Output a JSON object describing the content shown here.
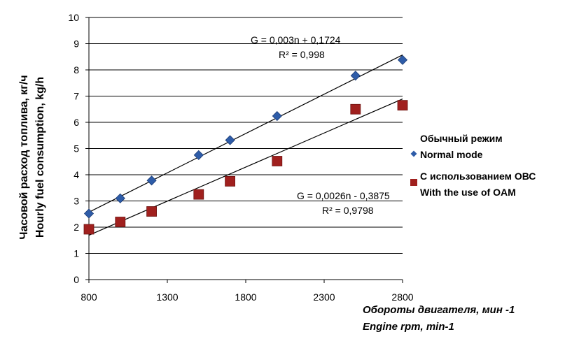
{
  "chart_data": {
    "type": "scatter",
    "xlabel": [
      "Обороты двигателя, мин -1",
      "Engine rpm, min-1"
    ],
    "ylabel": [
      "Часовой расход топлива, кг/ч",
      "Hourly fuel consumption, kg/h"
    ],
    "xlim": [
      800,
      2800
    ],
    "ylim": [
      0,
      10
    ],
    "x_ticks": [
      "800",
      "1300",
      "1800",
      "2300",
      "2800"
    ],
    "y_ticks": [
      "0",
      "1",
      "2",
      "3",
      "4",
      "5",
      "6",
      "7",
      "8",
      "9",
      "10"
    ],
    "grid": true,
    "legend_position": "right",
    "series": [
      {
        "name": [
          "Обычный режим",
          "Normal mode"
        ],
        "marker": "diamond",
        "color": "#2e5ca8",
        "x": [
          800,
          1000,
          1200,
          1500,
          1700,
          2000,
          2500,
          2800
        ],
        "y": [
          2.52,
          3.1,
          3.78,
          4.75,
          5.32,
          6.24,
          7.78,
          8.38
        ],
        "trendline": {
          "slope": 0.003,
          "intercept": 0.1724,
          "label": [
            "G = 0,003n + 0,1724",
            "R² = 0,998"
          ]
        }
      },
      {
        "name": [
          "С использованием ОВС",
          "With the use of OAM"
        ],
        "marker": "square",
        "color": "#a0201e",
        "x": [
          800,
          1000,
          1200,
          1500,
          1700,
          2000,
          2500,
          2800
        ],
        "y": [
          1.92,
          2.2,
          2.6,
          3.25,
          3.75,
          4.52,
          6.5,
          6.65
        ],
        "trendline": {
          "slope": 0.0026,
          "intercept": -0.3875,
          "label": [
            "G = 0,0026n - 0,3875",
            "R² = 0,9798"
          ]
        }
      }
    ]
  }
}
